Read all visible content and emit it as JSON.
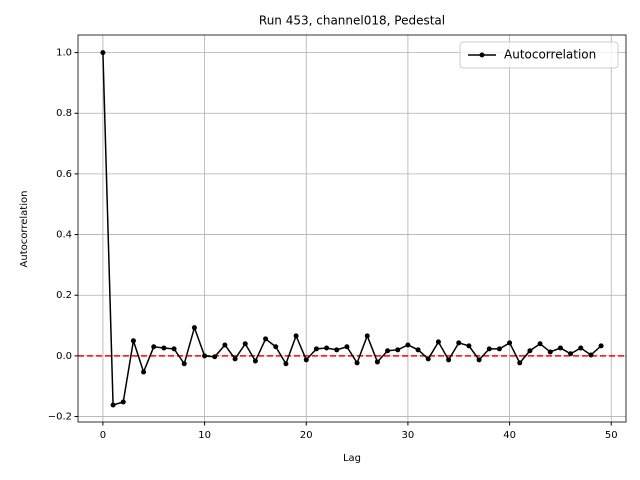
{
  "chart_data": {
    "type": "line",
    "title": "Run 453, channel018, Pedestal",
    "x_label": "Lag",
    "y_label": "Autocorrelation",
    "x": [
      0,
      1,
      2,
      3,
      4,
      5,
      6,
      7,
      8,
      9,
      10,
      11,
      12,
      13,
      14,
      15,
      16,
      17,
      18,
      19,
      20,
      21,
      22,
      23,
      24,
      25,
      26,
      27,
      28,
      29,
      30,
      31,
      32,
      33,
      34,
      35,
      36,
      37,
      38,
      39,
      40,
      41,
      42,
      43,
      44,
      45,
      46,
      47,
      48,
      49
    ],
    "series": [
      {
        "name": "Autocorrelation",
        "color": "#000000",
        "values": [
          1.0,
          -0.162,
          -0.152,
          0.05,
          -0.053,
          0.03,
          0.026,
          0.023,
          -0.026,
          0.093,
          0.0,
          -0.003,
          0.036,
          -0.01,
          0.04,
          -0.017,
          0.056,
          0.03,
          -0.026,
          0.066,
          -0.013,
          0.023,
          0.026,
          0.02,
          0.03,
          -0.023,
          0.066,
          -0.02,
          0.017,
          0.02,
          0.036,
          0.02,
          -0.01,
          0.046,
          -0.013,
          0.043,
          0.033,
          -0.013,
          0.023,
          0.023,
          0.043,
          -0.023,
          0.017,
          0.04,
          0.013,
          0.026,
          0.007,
          0.026,
          0.003,
          0.033
        ]
      }
    ],
    "reference_line": {
      "value": 0,
      "color": "#ff0000"
    },
    "xlim": [
      -2.45,
      51.45
    ],
    "ylim": [
      -0.218,
      1.058
    ],
    "xticks": [
      0,
      10,
      20,
      30,
      40,
      50
    ],
    "yticks": [
      {
        "value": -0.2,
        "label": "−0.2"
      },
      {
        "value": 0,
        "label": "0.0"
      },
      {
        "value": 0.2,
        "label": "0.2"
      },
      {
        "value": 0.4,
        "label": "0.4"
      },
      {
        "value": 0.6,
        "label": "0.6"
      },
      {
        "value": 0.8,
        "label": "0.8"
      },
      {
        "value": 1.0,
        "label": "1.0"
      }
    ],
    "grid": true,
    "legend": "upper-right"
  }
}
